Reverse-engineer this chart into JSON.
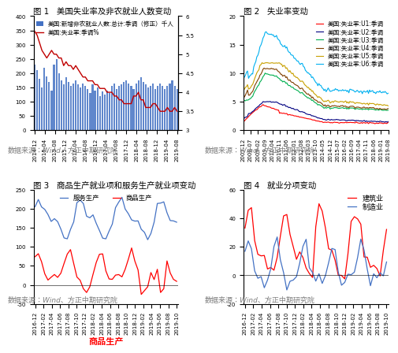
{
  "fig1": {
    "title": "图 1   美国失业率及非农就业人数变动",
    "bar_label": "美国:新增非农就业人数:总计:季调（修正）千人",
    "line_label": "美国:失业率:季调%",
    "bar_color": "#4472C4",
    "line_color": "#C00000",
    "source": "数据来源：Wind、方正中期研究院",
    "x_labels": [
      "2014-12",
      "2015-04",
      "2015-08",
      "2015-12",
      "2016-04",
      "2016-08",
      "2016-12",
      "2017-04",
      "2017-08",
      "2017-12",
      "2018-04",
      "2018-08",
      "2018-12",
      "2019-04",
      "2019-08"
    ],
    "bar_values": [
      230,
      210,
      180,
      150,
      220,
      190,
      170,
      140,
      230,
      250,
      200,
      175,
      160,
      185,
      170,
      155,
      165,
      175,
      160,
      150,
      165,
      155,
      145,
      130,
      160,
      140,
      150,
      120,
      135,
      125,
      140,
      130,
      155,
      165,
      145,
      155,
      160,
      170,
      175,
      165,
      155,
      145,
      165,
      175,
      185,
      170,
      160,
      150,
      155,
      165,
      145,
      155,
      165,
      155,
      145,
      155,
      165,
      175,
      155,
      145
    ],
    "unemployment": [
      5.6,
      5.5,
      5.3,
      5.1,
      5.0,
      4.9,
      5.0,
      5.1,
      5.0,
      5.0,
      4.9,
      4.9,
      4.7,
      4.8,
      4.7,
      4.7,
      4.6,
      4.7,
      4.6,
      4.5,
      4.4,
      4.4,
      4.3,
      4.3,
      4.3,
      4.2,
      4.2,
      4.1,
      4.1,
      4.1,
      4.0,
      4.0,
      4.0,
      3.9,
      3.9,
      3.8,
      3.8,
      3.7,
      3.7,
      3.7,
      3.7,
      3.9,
      3.9,
      4.0,
      3.8,
      3.8,
      3.6,
      3.6,
      3.6,
      3.7,
      3.7,
      3.6,
      3.5,
      3.5,
      3.5,
      3.6,
      3.5,
      3.5,
      3.6,
      3.5
    ],
    "ylim_right": [
      3.0,
      6.0
    ],
    "ylim_left": [
      0,
      400
    ],
    "yticks_right": [
      3.0,
      3.5,
      4.0,
      4.5,
      5.0,
      5.5,
      6.0
    ],
    "yticks_left": [
      0,
      50,
      100,
      150,
      200,
      250,
      300,
      350,
      400
    ]
  },
  "fig2": {
    "title": "图 2   失业率变动",
    "source": "数据来源：Wind、方正中期研究院",
    "U1_color": "#FF0000",
    "U2_color": "#000080",
    "U3_color": "#00B050",
    "U4_color": "#7F3F00",
    "U5_color": "#C8A000",
    "U6_color": "#00B0F0",
    "U1_label": "美国:失业率:U1:季调",
    "U2_label": "美国:失业率:U2:季调",
    "U3_label": "美国:失业率:U3:季调",
    "U4_label": "美国:失业率:U4:季调",
    "U5_label": "美国:失业率:U5:季调",
    "U6_label": "美国:失业率:U6:季调",
    "x_labels": [
      "2007-12",
      "2008-07",
      "2009-02",
      "2009-09",
      "2010-04",
      "2010-11",
      "2011-06",
      "2012-01",
      "2012-08",
      "2013-03",
      "2013-10",
      "2014-05",
      "2014-12",
      "2015-07",
      "2016-02",
      "2016-09",
      "2017-04",
      "2017-11",
      "2018-06",
      "2019-01",
      "2019-08"
    ],
    "ylim": [
      0,
      20
    ],
    "yticks": [
      0,
      5,
      10,
      15,
      20
    ]
  },
  "fig3": {
    "title": "图 3   商品生产就业项和服务生产就业项变动",
    "goods_label": "商品生产",
    "services_label": "服务生产",
    "goods_color": "#FF0000",
    "services_color": "#4472C4",
    "source": "数据来源：Wind、方正中期研究院",
    "xlabel": "商品生产",
    "x_labels": [
      "2016-12",
      "2017-02",
      "2017-04",
      "2017-06",
      "2017-08",
      "2017-10",
      "2017-12",
      "2018-02",
      "2018-04",
      "2018-06",
      "2018-08",
      "2018-10",
      "2018-12",
      "2019-02",
      "2019-04",
      "2019-06",
      "2019-08",
      "2019-10"
    ],
    "ylim": [
      -50,
      250
    ],
    "yticks": [
      -50,
      0,
      50,
      100,
      150,
      200,
      250
    ]
  },
  "fig4": {
    "title": "图 4   就业分项变动",
    "construction_label": "建筑业",
    "manufacturing_label": "制造业",
    "construction_color": "#FF0000",
    "manufacturing_color": "#4472C4",
    "source": "数据来源：Wind、方正中期研究院",
    "x_labels": [
      "2016-12",
      "2017-02",
      "2017-04",
      "2017-06",
      "2017-08",
      "2017-10",
      "2017-12",
      "2018-02",
      "2018-04",
      "2018-06",
      "2018-08",
      "2018-10",
      "2018-12",
      "2019-02",
      "2019-04",
      "2019-06",
      "2019-08",
      "2019-10"
    ],
    "ylim": [
      -20,
      60
    ],
    "yticks": [
      -20,
      0,
      20,
      40,
      60
    ]
  },
  "background_color": "#FFFFFF",
  "source_fontsize": 6.5,
  "title_fontsize": 7.5,
  "legend_fontsize": 5.5,
  "tick_fontsize": 5,
  "label_fontsize": 7
}
